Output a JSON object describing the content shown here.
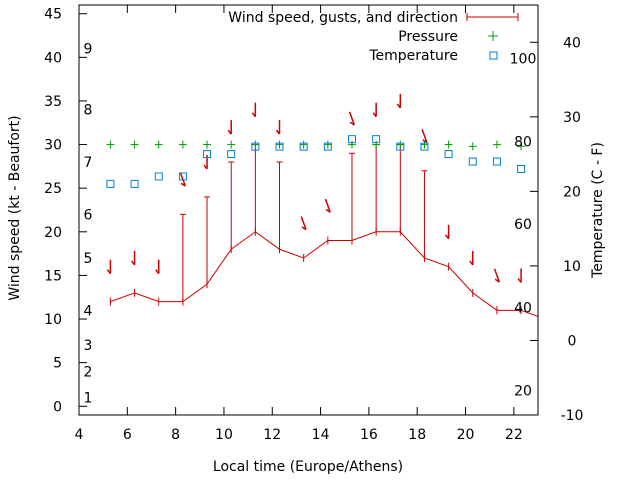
{
  "chart_data": {
    "type": "line",
    "title": "",
    "xlabel": "Local time (Europe/Athens)",
    "ylabel": "Wind speed (kt - Beaufort)",
    "y2label": "Temperature (C - F)",
    "xlim": [
      4,
      23
    ],
    "ylim": [
      -1,
      46
    ],
    "y2lim": [
      -10,
      45
    ],
    "x_ticks": [
      4,
      6,
      8,
      10,
      12,
      14,
      16,
      18,
      20,
      22
    ],
    "x_tick_labels": [
      "4",
      "6",
      "8",
      "10",
      "12",
      "14",
      "16",
      "18",
      "20",
      "22"
    ],
    "y_ticks": [
      0,
      5,
      10,
      15,
      20,
      25,
      30,
      35,
      40,
      45
    ],
    "y_tick_labels": [
      "0",
      "5",
      "10",
      "15",
      "20",
      "25",
      "30",
      "35",
      "40",
      "45"
    ],
    "y2_ticks": [
      -10,
      0,
      10,
      20,
      30,
      40
    ],
    "y2_tick_labels": [
      "-10",
      "0",
      "10",
      "20",
      "30",
      "40"
    ],
    "beaufort_labels": [
      {
        "text": "1",
        "y": 1.0
      },
      {
        "text": "2",
        "y": 4.0
      },
      {
        "text": "3",
        "y": 7.0
      },
      {
        "text": "4",
        "y": 11.0
      },
      {
        "text": "5",
        "y": 17.0
      },
      {
        "text": "6",
        "y": 22.0
      },
      {
        "text": "7",
        "y": 28.0
      },
      {
        "text": "8",
        "y": 34.0
      },
      {
        "text": "9",
        "y": 41.0
      }
    ],
    "fahrenheit_labels": [
      {
        "text": "20",
        "y2": -6.7
      },
      {
        "text": "40",
        "y2": 4.4
      },
      {
        "text": "60",
        "y2": 15.6
      },
      {
        "text": "80",
        "y2": 26.7
      },
      {
        "text": "100",
        "y2": 37.8
      }
    ],
    "legend": [
      {
        "name": "Wind speed, gusts, and direction",
        "style": "line",
        "color": "#cc0000"
      },
      {
        "name": "Pressure",
        "style": "plus",
        "color": "#00a000"
      },
      {
        "name": "Temperature",
        "style": "square",
        "color": "#0080d0"
      }
    ],
    "series": [
      {
        "name": "Wind speed, gusts, and direction",
        "color": "#cc0000",
        "x": [
          5.3,
          6.3,
          7.3,
          8.3,
          9.3,
          10.3,
          11.3,
          12.3,
          13.3,
          14.3,
          15.3,
          16.3,
          17.3,
          18.3,
          19.3,
          20.3,
          21.3,
          22.3,
          23.0
        ],
        "wind": [
          12,
          13,
          12,
          12,
          14,
          18,
          20,
          18,
          17,
          19,
          19,
          20,
          20,
          17,
          16,
          13,
          11,
          11,
          10.3
        ],
        "gusts": [
          12,
          13,
          12,
          22,
          24,
          28,
          30,
          28,
          17,
          19,
          29,
          30,
          30,
          27,
          16,
          13,
          11,
          11,
          null
        ],
        "direction_deg": [
          0,
          0,
          0,
          20,
          0,
          0,
          0,
          0,
          20,
          20,
          20,
          0,
          0,
          20,
          0,
          0,
          20,
          0,
          null
        ],
        "arrow_y": [
          16,
          17,
          16,
          26,
          28,
          32,
          34,
          32,
          21,
          23,
          33,
          34,
          35,
          31,
          20,
          17,
          15,
          15,
          null
        ]
      },
      {
        "name": "Pressure",
        "color": "#00a000",
        "x": [
          5.3,
          6.3,
          7.3,
          8.3,
          9.3,
          10.3,
          11.3,
          12.3,
          13.3,
          14.3,
          15.3,
          16.3,
          17.3,
          18.3,
          19.3,
          20.3,
          21.3,
          22.3
        ],
        "y": [
          30,
          30,
          30,
          30,
          30,
          30,
          30,
          30,
          30,
          30,
          30,
          30,
          30,
          30,
          30,
          29.8,
          30,
          29.8
        ]
      },
      {
        "name": "Temperature",
        "color": "#0080d0",
        "axis": "y2",
        "x": [
          5.3,
          6.3,
          7.3,
          8.3,
          9.3,
          10.3,
          11.3,
          12.3,
          13.3,
          14.3,
          15.3,
          16.3,
          17.3,
          18.3,
          19.3,
          20.3,
          21.3,
          22.3
        ],
        "y2": [
          21,
          21,
          22,
          22,
          25,
          25,
          26,
          26,
          26,
          26,
          27,
          27,
          26,
          26,
          25,
          24,
          24,
          23
        ]
      }
    ]
  }
}
